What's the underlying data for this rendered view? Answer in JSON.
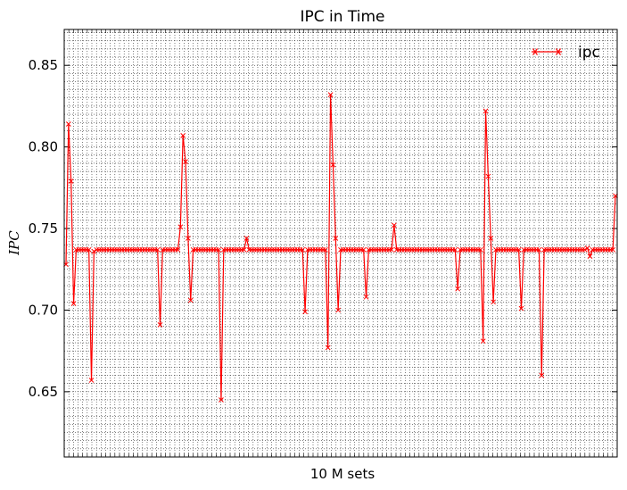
{
  "chart_data": {
    "type": "line",
    "title": "IPC in Time",
    "xlabel": "10 M sets",
    "ylabel": "IPC",
    "ylim": [
      0.61,
      0.872
    ],
    "yticks": [
      0.65,
      0.7,
      0.75,
      0.8,
      0.85
    ],
    "ytick_labels": [
      "0.65",
      "0.70",
      "0.75",
      "0.80",
      "0.85"
    ],
    "grid": true,
    "legend_position": "top-right",
    "series": [
      {
        "name": "ipc",
        "color": "#ff0000",
        "marker": "x",
        "values": [
          0.728,
          0.814,
          0.779,
          0.704,
          0.737,
          0.737,
          0.737,
          0.737,
          0.737,
          0.737,
          0.657,
          0.736,
          0.737,
          0.737,
          0.737,
          0.737,
          0.737,
          0.737,
          0.737,
          0.737,
          0.737,
          0.737,
          0.737,
          0.737,
          0.737,
          0.737,
          0.737,
          0.737,
          0.737,
          0.737,
          0.737,
          0.737,
          0.737,
          0.737,
          0.737,
          0.737,
          0.737,
          0.691,
          0.737,
          0.737,
          0.737,
          0.737,
          0.737,
          0.737,
          0.737,
          0.751,
          0.807,
          0.791,
          0.744,
          0.706,
          0.737,
          0.737,
          0.737,
          0.737,
          0.737,
          0.737,
          0.737,
          0.737,
          0.737,
          0.737,
          0.737,
          0.645,
          0.737,
          0.737,
          0.737,
          0.737,
          0.737,
          0.737,
          0.737,
          0.737,
          0.737,
          0.744,
          0.737,
          0.737,
          0.737,
          0.737,
          0.737,
          0.737,
          0.737,
          0.737,
          0.737,
          0.737,
          0.737,
          0.737,
          0.737,
          0.737,
          0.737,
          0.737,
          0.737,
          0.737,
          0.737,
          0.737,
          0.737,
          0.737,
          0.699,
          0.737,
          0.737,
          0.737,
          0.737,
          0.737,
          0.737,
          0.737,
          0.737,
          0.677,
          0.832,
          0.789,
          0.744,
          0.7,
          0.737,
          0.737,
          0.737,
          0.737,
          0.737,
          0.737,
          0.737,
          0.737,
          0.737,
          0.737,
          0.708,
          0.737,
          0.737,
          0.737,
          0.737,
          0.737,
          0.737,
          0.737,
          0.737,
          0.737,
          0.737,
          0.752,
          0.737,
          0.737,
          0.737,
          0.737,
          0.737,
          0.737,
          0.737,
          0.737,
          0.737,
          0.737,
          0.737,
          0.737,
          0.737,
          0.737,
          0.737,
          0.737,
          0.737,
          0.737,
          0.737,
          0.737,
          0.737,
          0.737,
          0.737,
          0.737,
          0.713,
          0.737,
          0.737,
          0.737,
          0.737,
          0.737,
          0.737,
          0.737,
          0.737,
          0.737,
          0.681,
          0.822,
          0.782,
          0.744,
          0.705,
          0.737,
          0.737,
          0.737,
          0.737,
          0.737,
          0.737,
          0.737,
          0.737,
          0.737,
          0.737,
          0.701,
          0.737,
          0.737,
          0.737,
          0.737,
          0.737,
          0.737,
          0.737,
          0.66,
          0.737,
          0.737,
          0.737,
          0.737,
          0.737,
          0.737,
          0.737,
          0.737,
          0.737,
          0.737,
          0.737,
          0.737,
          0.737,
          0.737,
          0.737,
          0.737,
          0.737,
          0.738,
          0.733,
          0.737,
          0.737,
          0.737,
          0.737,
          0.737,
          0.737,
          0.737,
          0.737,
          0.737,
          0.77
        ]
      }
    ]
  }
}
